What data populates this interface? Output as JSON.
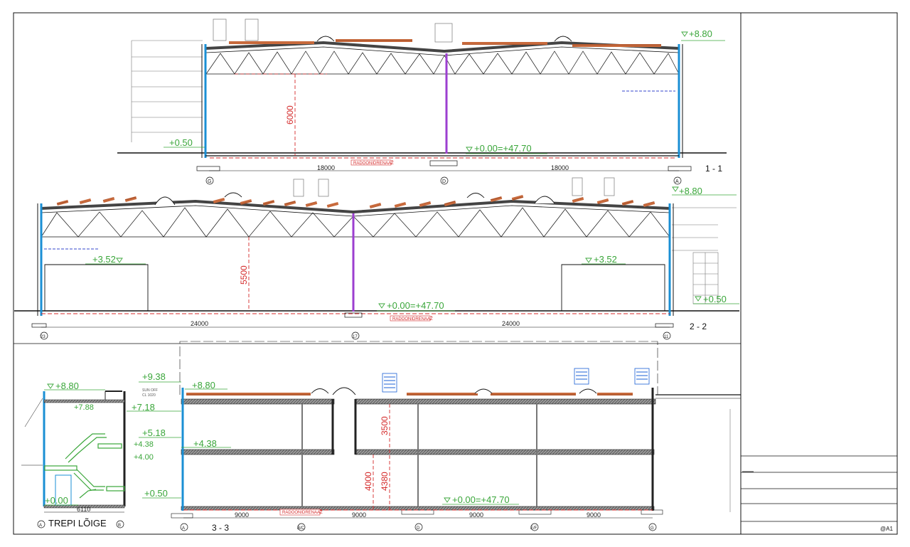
{
  "sheet": {
    "code": "@A1"
  },
  "section_1": {
    "name": "1 - 1",
    "roof_level": "+8.80",
    "floor_level": "+0.00=+47.70",
    "ext_level": "+0.50",
    "height_dim": "6000",
    "spans": [
      "18000",
      "18000"
    ],
    "axes": [
      "G",
      "D",
      "A"
    ],
    "drainage_label": "RADOONIDRENAAŽ"
  },
  "section_2": {
    "name": "2 - 2",
    "roof_level": "+8.80",
    "floor_level": "+0.00=+47.70",
    "door_level_left": "+3.52",
    "door_level_right": "+3.52",
    "ext_level": "+0.50",
    "height_dim": "5500",
    "spans": [
      "24000",
      "24000"
    ],
    "axes": [
      "23",
      "17",
      "11"
    ],
    "drainage_label": "RADOONIDRENAAŽ"
  },
  "section_3": {
    "name": "3 - 3",
    "levels": {
      "top": "+9.38",
      "roof": "+8.80",
      "l1": "+7.18",
      "l2": "+5.18",
      "l3": "+4.38",
      "ext": "+0.50"
    },
    "floor_level": "+0.00=+47.70",
    "height_dims": [
      "3500",
      "4380",
      "4000"
    ],
    "spans": [
      "9000",
      "9000",
      "9000",
      "9000"
    ],
    "axes": [
      "A",
      "B/C",
      "D",
      "E/F",
      "G"
    ],
    "drainage_label": "RADOONIDRENAAŽ",
    "note_lines": [
      "SUN OFF",
      "CL 1020"
    ]
  },
  "stair": {
    "name": "TREPI LÕIGE",
    "levels": {
      "top": "+8.80",
      "upper": "+7.88",
      "mid1": "+4.38",
      "mid2": "+4.00",
      "base": "+0.00"
    },
    "width_dim": "6110",
    "axes": [
      "A",
      "B"
    ]
  }
}
